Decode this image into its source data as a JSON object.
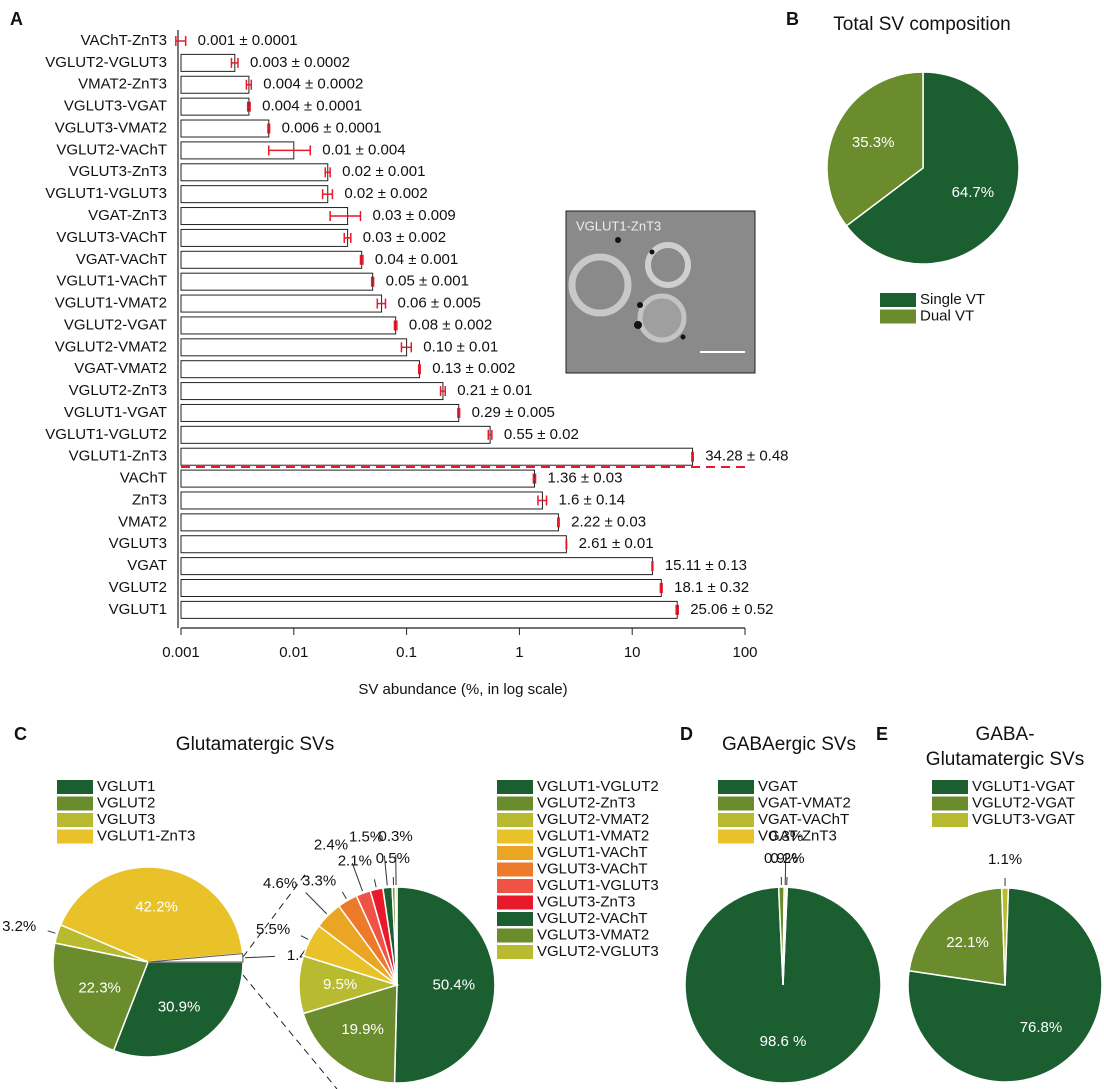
{
  "chart_data": [
    {
      "type": "bar",
      "orientation": "horizontal",
      "panel": "A",
      "categories": [
        "VAChT-ZnT3",
        "VGLUT2-VGLUT3",
        "VMAT2-ZnT3",
        "VGLUT3-VGAT",
        "VGLUT3-VMAT2",
        "VGLUT2-VAChT",
        "VGLUT3-ZnT3",
        "VGLUT1-VGLUT3",
        "VGAT-ZnT3",
        "VGLUT3-VAChT",
        "VGAT-VAChT",
        "VGLUT1-VAChT",
        "VGLUT1-VMAT2",
        "VGLUT2-VGAT",
        "VGLUT2-VMAT2",
        "VGAT-VMAT2",
        "VGLUT2-ZnT3",
        "VGLUT1-VGAT",
        "VGLUT1-VGLUT2",
        "VGLUT1-ZnT3",
        "VAChT",
        "ZnT3",
        "VMAT2",
        "VGLUT3",
        "VGAT",
        "VGLUT2",
        "VGLUT1"
      ],
      "values": [
        0.001,
        0.003,
        0.004,
        0.004,
        0.006,
        0.01,
        0.02,
        0.02,
        0.03,
        0.03,
        0.04,
        0.05,
        0.06,
        0.08,
        0.1,
        0.13,
        0.21,
        0.29,
        0.55,
        34.28,
        1.36,
        1.6,
        2.22,
        2.61,
        15.11,
        18.1,
        25.06
      ],
      "errors": [
        0.0001,
        0.0002,
        0.0002,
        0.0001,
        0.0001,
        0.004,
        0.001,
        0.002,
        0.009,
        0.002,
        0.001,
        0.001,
        0.005,
        0.002,
        0.01,
        0.002,
        0.01,
        0.005,
        0.02,
        0.48,
        0.03,
        0.14,
        0.03,
        0.01,
        0.13,
        0.32,
        0.52
      ],
      "value_labels": [
        "0.001 ± 0.0001",
        "0.003 ± 0.0002",
        "0.004 ± 0.0002",
        "0.004 ± 0.0001",
        "0.006 ± 0.0001",
        "0.01 ± 0.004",
        "0.02 ± 0.001",
        "0.02 ± 0.002",
        "0.03 ± 0.009",
        "0.03 ± 0.002",
        "0.04 ± 0.001",
        "0.05 ± 0.001",
        "0.06 ± 0.005",
        "0.08 ± 0.002",
        "0.10 ± 0.01",
        "0.13 ± 0.002",
        "0.21 ± 0.01",
        "0.29 ± 0.005",
        "0.55 ± 0.02",
        "34.28 ± 0.48",
        "1.36 ± 0.03",
        "1.6 ± 0.14",
        "2.22 ± 0.03",
        "2.61 ± 0.01",
        "15.11 ± 0.13",
        "18.1 ± 0.32",
        "25.06 ± 0.52"
      ],
      "color": "#ffffff",
      "error_color": "#e8192a",
      "xscale": "log",
      "xlim": [
        0.001,
        100
      ],
      "xticks": [
        0.001,
        0.01,
        0.1,
        1,
        10,
        100
      ],
      "xlabel": "SV abundance (%, in log scale)",
      "annotation": "VGLUT1-ZnT3"
    },
    {
      "type": "pie",
      "panel": "B",
      "title": "Total SV composition",
      "categories": [
        "Single VT",
        "Dual VT"
      ],
      "values": [
        64.7,
        35.3
      ],
      "value_labels": [
        "64.7%",
        "35.3%"
      ],
      "colors": [
        "#1b5e30",
        "#6a8c2c"
      ]
    },
    {
      "type": "pie",
      "panel": "C",
      "title": "Glutamatergic SVs",
      "categories": [
        "VGLUT1",
        "VGLUT2",
        "VGLUT3",
        "VGLUT1-ZnT3",
        null
      ],
      "values": [
        30.9,
        22.3,
        3.2,
        42.2,
        1.4
      ],
      "value_labels": [
        "30.9%",
        "22.3%",
        "3.2%",
        "42.2%",
        "1.4%"
      ],
      "colors": [
        "#1b5e30",
        "#6a8c2c",
        "#b8bb2f",
        "#e9c229",
        "#ffffff"
      ]
    },
    {
      "type": "pie",
      "categories": [
        "VGLUT1-VGLUT2",
        "VGLUT2-ZnT3",
        "VGLUT2-VMAT2",
        "VGLUT1-VMAT2",
        "VGLUT1-VAChT",
        "VGLUT3-VAChT",
        "VGLUT1-VGLUT3",
        "VGLUT3-ZnT3",
        "VGLUT2-VAChT",
        "VGLUT3-VMAT2",
        "VGLUT2-VGLUT3"
      ],
      "values": [
        50.4,
        19.9,
        9.5,
        5.5,
        4.6,
        3.3,
        2.4,
        2.1,
        1.5,
        0.5,
        0.3
      ],
      "value_labels": [
        "50.4%",
        "19.9%",
        "9.5%",
        "5.5%",
        "4.6%",
        "3.3%",
        "2.4%",
        "2.1%",
        "1.5%",
        "0.5%",
        "0.3%"
      ],
      "colors": [
        "#1b5e30",
        "#6a8c2c",
        "#b8bb2f",
        "#e9c229",
        "#eaa523",
        "#ec7a2a",
        "#ef5346",
        "#e8192a",
        "#1b5e30",
        "#6a8c2c",
        "#b8bb2f"
      ]
    },
    {
      "type": "pie",
      "panel": "D",
      "title": "GABAergic SVs",
      "categories": [
        "VGAT",
        "VGAT-VMAT2",
        "VGAT-VAChT",
        "VGAT-ZnT3"
      ],
      "values": [
        98.6,
        0.9,
        0.3,
        0.2
      ],
      "value_labels": [
        "98.6 %",
        "0.9%",
        "0.3%",
        "0.2%"
      ],
      "colors": [
        "#1b5e30",
        "#6a8c2c",
        "#b8bb2f",
        "#e9c229"
      ]
    },
    {
      "type": "pie",
      "panel": "E",
      "title": [
        "GABA-",
        "Glutamatergic SVs"
      ],
      "categories": [
        "VGLUT1-VGAT",
        "VGLUT2-VGAT",
        "VGLUT3-VGAT"
      ],
      "values": [
        76.8,
        22.1,
        1.1
      ],
      "value_labels": [
        "76.8%",
        "22.1%",
        "1.1%"
      ],
      "colors": [
        "#1b5e30",
        "#6a8c2c",
        "#b8bb2f"
      ]
    }
  ]
}
